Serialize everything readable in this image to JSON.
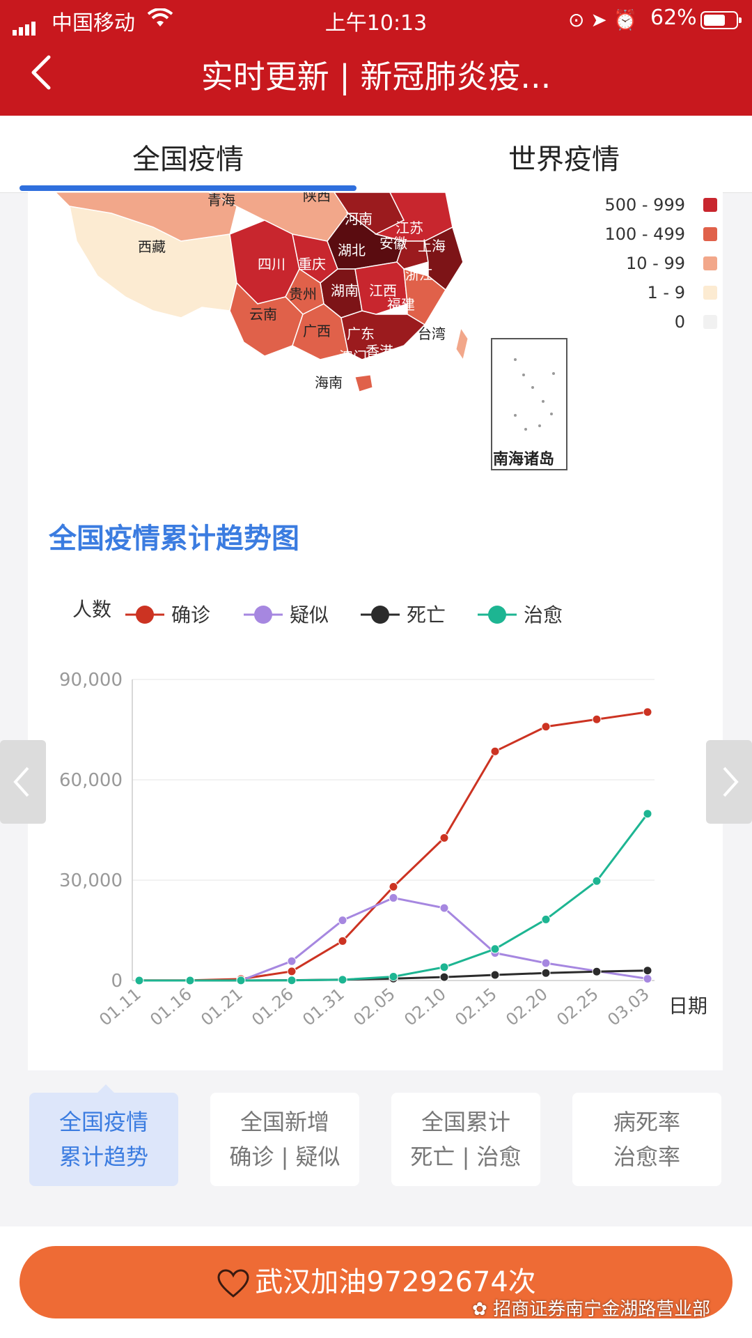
{
  "status_bar": {
    "carrier": "中国移动",
    "time": "上午10:13",
    "battery": "62%"
  },
  "nav": {
    "title": "实时更新 | 新冠肺炎疫..."
  },
  "tabs": [
    {
      "label": "全国疫情",
      "active": true
    },
    {
      "label": "世界疫情",
      "active": false
    }
  ],
  "map": {
    "provinces": [
      "青海",
      "陕西",
      "西藏",
      "河南",
      "江苏",
      "四川",
      "湖北",
      "重庆",
      "安徽",
      "上海",
      "浙江",
      "湖南",
      "贵州",
      "江西",
      "云南",
      "福建",
      "广西",
      "广东",
      "台湾",
      "香港",
      "澳门",
      "海南"
    ],
    "inset_label": "南海诸岛",
    "legend": [
      {
        "label": "500 - 999",
        "color": "#c8262e"
      },
      {
        "label": "100 - 499",
        "color": "#e0614a"
      },
      {
        "label": "10 - 99",
        "color": "#f2a78a"
      },
      {
        "label": "1 - 9",
        "color": "#fcebd2"
      },
      {
        "label": "0",
        "color": "#f1f1f1"
      }
    ]
  },
  "section_title": "全国疫情累计趋势图",
  "chart_data": {
    "type": "line",
    "ylabel": "人数",
    "xlabel": "日期",
    "ylim": [
      0,
      90000
    ],
    "yticks": [
      "90,000",
      "60,000",
      "30,000",
      "0"
    ],
    "x": [
      "01.11",
      "01.16",
      "01.21",
      "01.26",
      "01.31",
      "02.05",
      "02.10",
      "02.15",
      "02.20",
      "02.25",
      "03.03"
    ],
    "grid": true,
    "legend": "top",
    "series": [
      {
        "name": "确诊",
        "color": "#cc3322",
        "values": [
          41,
          45,
          440,
          2744,
          11791,
          28018,
          42638,
          68500,
          75891,
          78064,
          80270
        ]
      },
      {
        "name": "疑似",
        "color": "#a687e0",
        "values": [
          0,
          0,
          0,
          5794,
          17988,
          24702,
          21675,
          8228,
          5206,
          2824,
          520
        ]
      },
      {
        "name": "死亡",
        "color": "#2b2b2b",
        "values": [
          1,
          2,
          9,
          80,
          259,
          563,
          1016,
          1665,
          2236,
          2663,
          2981
        ]
      },
      {
        "name": "治愈",
        "color": "#1db592",
        "values": [
          0,
          0,
          25,
          51,
          243,
          1153,
          3996,
          9419,
          18264,
          29745,
          49856
        ]
      }
    ]
  },
  "chart_options": [
    {
      "line1": "全国疫情",
      "line2": "累计趋势",
      "active": true
    },
    {
      "line1": "全国新增",
      "line2": "确诊 | 疑似",
      "active": false
    },
    {
      "line1": "全国累计",
      "line2": "死亡 | 治愈",
      "active": false
    },
    {
      "line1": "病死率",
      "line2": "治愈率",
      "active": false
    }
  ],
  "cheer_button": "武汉加油97292674次",
  "watermark": "招商证券南宁金湖路营业部"
}
